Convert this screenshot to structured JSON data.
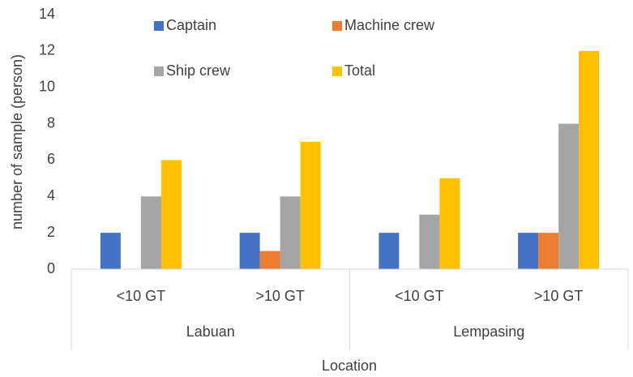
{
  "chart_data": {
    "type": "bar",
    "y_label": "number of sample (person)",
    "x_label": "Location",
    "groups": [
      "Labuan",
      "Lempasing"
    ],
    "categories": [
      "<10 GT",
      ">10 GT",
      "<10 GT",
      ">10 GT"
    ],
    "series": [
      {
        "name": "Captain",
        "color": "#4472c4",
        "values": [
          2,
          2,
          2,
          2
        ]
      },
      {
        "name": "Machine crew",
        "color": "#ed7d31",
        "values": [
          0,
          1,
          0,
          2
        ]
      },
      {
        "name": "Ship crew",
        "color": "#a5a5a5",
        "values": [
          4,
          4,
          3,
          8
        ]
      },
      {
        "name": "Total",
        "color": "#ffc000",
        "values": [
          6,
          7,
          5,
          12
        ]
      }
    ],
    "ylim": [
      0,
      14
    ],
    "yticks": [
      0,
      2,
      4,
      6,
      8,
      10,
      12,
      14
    ],
    "grid": false
  }
}
